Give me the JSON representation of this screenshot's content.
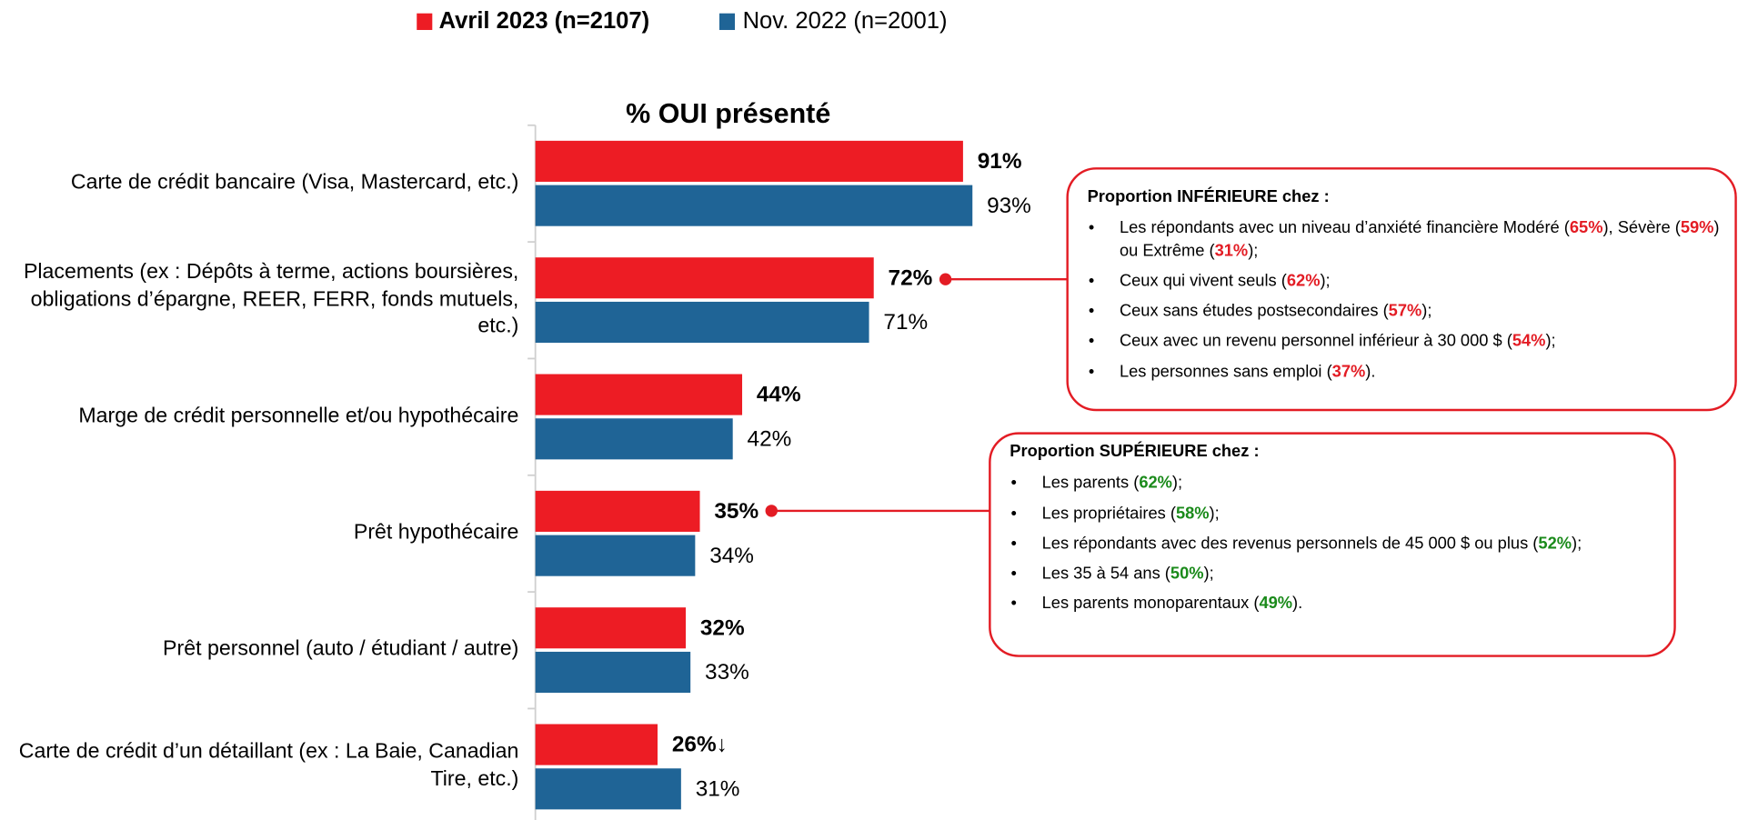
{
  "chart_data": {
    "type": "hbar",
    "title": "% OUI présenté",
    "categories": [
      "Carte de crédit bancaire (Visa, Mastercard, etc.)",
      "Placements (ex : Dépôts à terme, actions boursières, obligations d’épargne, REER, FERR, fonds mutuels, etc.)",
      "Marge de crédit personnelle et/ou hypothécaire",
      "Prêt hypothécaire",
      "Prêt personnel (auto / étudiant / autre)",
      "Carte de crédit d’un détaillant (ex : La Baie, Canadian Tire, etc.)"
    ],
    "series": [
      {
        "name": "Avril 2023 (n=2107)",
        "color": "#ed1c24",
        "values": [
          91,
          72,
          44,
          35,
          32,
          26
        ],
        "value_labels": [
          "91%",
          "72%",
          "44%",
          "35%",
          "32%",
          "26%↓"
        ]
      },
      {
        "name": "Nov. 2022 (n=2001)",
        "color": "#1f6496",
        "values": [
          93,
          71,
          42,
          34,
          33,
          31
        ],
        "value_labels": [
          "93%",
          "71%",
          "42%",
          "34%",
          "33%",
          "31%"
        ]
      }
    ],
    "xlim": [
      0,
      100
    ],
    "legend": "top",
    "annotations": [
      {
        "title": "Proportion INFÉRIEURE chez :",
        "color": "#e31c24",
        "items": [
          [
            "Les répondants avec un niveau d’anxiété financière Modéré (",
            "65%",
            "), Sévère (",
            "59%",
            ") ou Extrême (",
            "31%",
            ");"
          ],
          [
            "Ceux qui vivent seuls (",
            "62%",
            ");"
          ],
          [
            "Ceux sans études postsecondaires (",
            "57%",
            ");"
          ],
          [
            "Ceux avec un revenu personnel inférieur à 30 000 $ (",
            "54%",
            ");"
          ],
          [
            "Les personnes sans emploi (",
            "37%",
            ")."
          ]
        ]
      },
      {
        "title": "Proportion SUPÉRIEURE chez :",
        "color": "#1a8a1a",
        "items": [
          [
            "Les parents (",
            "62%",
            ");"
          ],
          [
            "Les propriétaires (",
            "58%",
            ");"
          ],
          [
            "Les répondants avec des revenus personnels de 45 000 $ ou plus (",
            "52%",
            ");"
          ],
          [
            "Les 35 à 54 ans (",
            "50%",
            ");"
          ],
          [
            "Les parents monoparentaux (",
            "49%",
            ")."
          ]
        ]
      }
    ]
  }
}
